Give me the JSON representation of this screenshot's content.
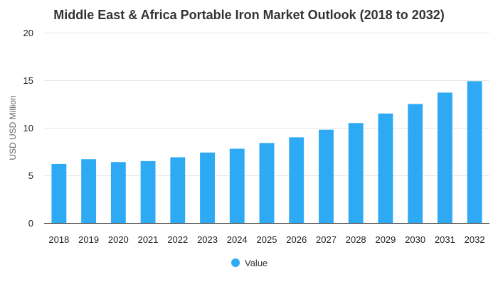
{
  "chart_data": {
    "type": "bar",
    "title": "Middle East & Africa Portable Iron Market Outlook (2018 to 2032)",
    "xlabel": "",
    "ylabel": "USD USD Million",
    "ylim": [
      0,
      20
    ],
    "yticks": [
      0,
      5,
      10,
      15,
      20
    ],
    "grid": true,
    "legend_position": "bottom",
    "categories": [
      "2018",
      "2019",
      "2020",
      "2021",
      "2022",
      "2023",
      "2024",
      "2025",
      "2026",
      "2027",
      "2028",
      "2029",
      "2030",
      "2031",
      "2032"
    ],
    "series": [
      {
        "name": "Value",
        "color": "#2eaaf5",
        "values": [
          6.2,
          6.7,
          6.4,
          6.5,
          6.9,
          7.4,
          7.8,
          8.4,
          9.0,
          9.8,
          10.5,
          11.5,
          12.5,
          13.7,
          14.9
        ]
      }
    ]
  }
}
